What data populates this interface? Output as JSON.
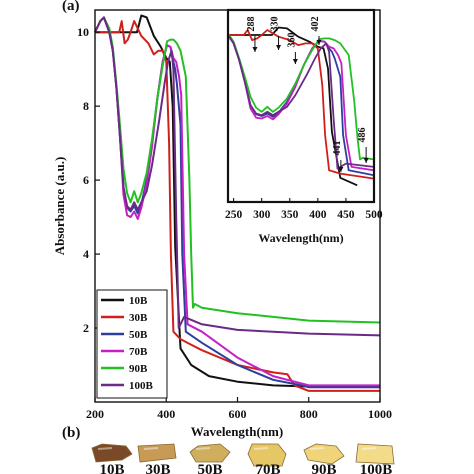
{
  "panel_a_label": "(a)",
  "panel_b_label": "(b)",
  "colors": {
    "10B": "#111111",
    "30B": "#d0201a",
    "50B": "#2d3f9e",
    "70B": "#c61fc6",
    "90B": "#22c022",
    "100B": "#6a2a86"
  },
  "chart_data": [
    {
      "type": "line",
      "xlabel": "Wavelength(nm)",
      "ylabel": "Absorbance (a.u.)",
      "xlim": [
        200,
        1000
      ],
      "ylim": [
        0,
        10.6
      ],
      "xticks": [
        200,
        400,
        600,
        800,
        1000
      ],
      "yticks": [
        2,
        4,
        6,
        8,
        10
      ],
      "legend": {
        "placement": "bottom-left",
        "entries": [
          "10B",
          "30B",
          "50B",
          "70B",
          "90B",
          "100B"
        ]
      },
      "series": [
        {
          "name": "10B",
          "x": [
            200,
            230,
            260,
            290,
            318,
            330,
            345,
            365,
            385,
            400,
            410,
            418,
            425,
            440,
            470,
            520,
            600,
            700,
            800,
            1000
          ],
          "y": [
            10,
            10,
            10,
            10,
            10,
            10.45,
            10.4,
            9.9,
            9.6,
            9.3,
            9.2,
            8.0,
            4.2,
            1.45,
            1.0,
            0.7,
            0.55,
            0.45,
            0.42,
            0.42
          ]
        },
        {
          "name": "30B",
          "x": [
            200,
            240,
            268,
            275,
            283,
            292,
            300,
            310,
            330,
            350,
            365,
            378,
            390,
            400,
            408,
            413,
            420,
            440,
            470,
            500,
            600,
            700,
            740,
            760,
            800,
            1000
          ],
          "y": [
            10,
            10,
            10,
            10.3,
            9.7,
            9.8,
            10,
            10.3,
            9.9,
            9.7,
            9.4,
            9.5,
            9.5,
            9.2,
            7.0,
            4.0,
            1.9,
            1.7,
            1.55,
            1.4,
            1.0,
            0.8,
            0.75,
            0.45,
            0.3,
            0.3
          ]
        },
        {
          "name": "50B",
          "x": [
            200,
            215,
            225,
            240,
            250,
            260,
            270,
            280,
            290,
            300,
            310,
            320,
            330,
            345,
            360,
            375,
            390,
            402,
            412,
            420,
            425,
            430,
            440,
            445,
            455,
            500,
            600,
            700,
            780,
            800,
            1000
          ],
          "y": [
            10,
            10.3,
            10.4,
            10,
            9.5,
            8.5,
            7.2,
            5.8,
            5.25,
            5.15,
            5.3,
            5.1,
            5.35,
            6.0,
            7.0,
            8.2,
            9.2,
            9.65,
            9.6,
            9.2,
            9.0,
            8.6,
            7.5,
            4.0,
            1.9,
            1.6,
            1.0,
            0.6,
            0.45,
            0.4,
            0.4
          ]
        },
        {
          "name": "70B",
          "x": [
            200,
            215,
            225,
            240,
            250,
            260,
            270,
            280,
            290,
            300,
            310,
            320,
            330,
            345,
            360,
            375,
            390,
            402,
            412,
            420,
            428,
            436,
            442,
            450,
            460,
            500,
            600,
            700,
            780,
            800,
            1000
          ],
          "y": [
            10,
            10.3,
            10.4,
            10,
            9.5,
            8.5,
            7.2,
            5.6,
            5.05,
            5.0,
            5.15,
            4.95,
            5.25,
            5.9,
            6.9,
            8.2,
            9.2,
            9.65,
            9.6,
            9.3,
            9.2,
            8.8,
            8.3,
            4.0,
            2.1,
            1.9,
            1.2,
            0.7,
            0.5,
            0.45,
            0.45
          ]
        },
        {
          "name": "90B",
          "x": [
            200,
            215,
            225,
            240,
            250,
            260,
            270,
            280,
            290,
            300,
            310,
            320,
            330,
            345,
            360,
            375,
            390,
            402,
            412,
            420,
            430,
            440,
            455,
            465,
            470,
            475,
            480,
            500,
            600,
            700,
            800,
            1000
          ],
          "y": [
            10,
            10.3,
            10.4,
            10.1,
            9.6,
            8.6,
            7.5,
            6.3,
            5.65,
            5.4,
            5.7,
            5.4,
            5.65,
            6.2,
            7.1,
            8.2,
            9.1,
            9.75,
            9.8,
            9.8,
            9.7,
            9.5,
            8.8,
            6.0,
            4.0,
            2.55,
            2.65,
            2.55,
            2.4,
            2.3,
            2.2,
            2.15
          ]
        },
        {
          "name": "100B",
          "x": [
            200,
            215,
            225,
            240,
            250,
            260,
            270,
            280,
            290,
            300,
            310,
            320,
            330,
            345,
            360,
            380,
            395,
            405,
            415,
            420,
            428,
            435,
            450,
            500,
            600,
            800,
            1000
          ],
          "y": [
            10,
            10.3,
            10.4,
            10,
            9.5,
            8.5,
            7.2,
            5.8,
            5.3,
            5.2,
            5.4,
            5.2,
            5.4,
            5.7,
            6.4,
            7.6,
            8.6,
            9.2,
            9.5,
            9.0,
            5.0,
            2.0,
            2.3,
            2.1,
            1.95,
            1.85,
            1.8
          ]
        }
      ]
    },
    {
      "type": "line",
      "role": "inset",
      "xlabel": "Wavelength(nm)",
      "xlim": [
        240,
        500
      ],
      "xticks": [
        250,
        300,
        350,
        400,
        450,
        500
      ],
      "annotations": [
        "288",
        "330",
        "360",
        "402",
        "441",
        "486"
      ]
    }
  ],
  "samples": {
    "labels": [
      "10B",
      "30B",
      "50B",
      "70B",
      "90B",
      "100B"
    ],
    "colors": [
      "#7a4a28",
      "#c79a55",
      "#cfae5e",
      "#e6c766",
      "#efd47a",
      "#f2dc8a"
    ]
  }
}
